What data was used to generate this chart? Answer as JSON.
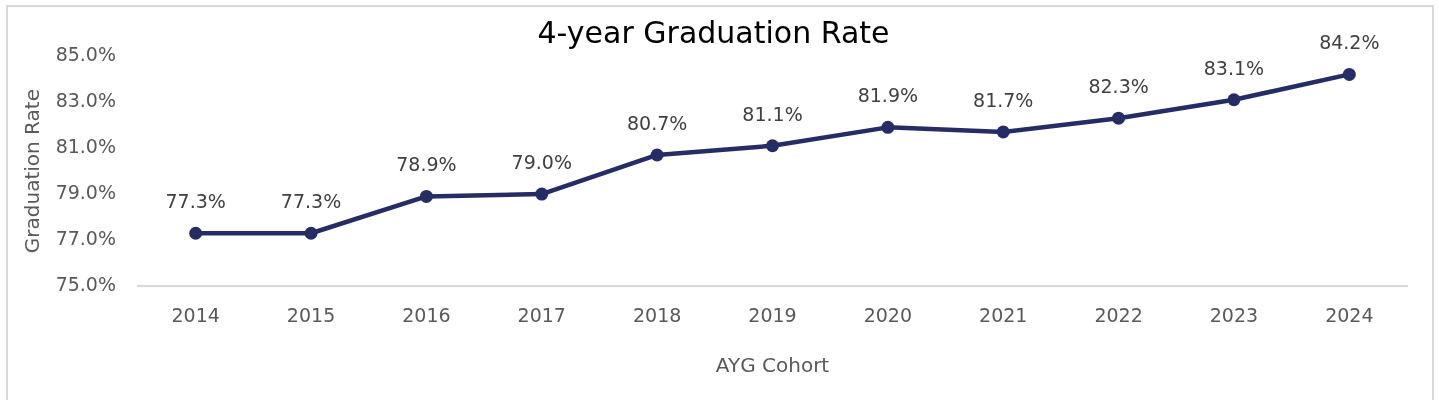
{
  "chart_data": {
    "type": "line",
    "title": "4-year Graduation Rate",
    "xlabel": "AYG Cohort",
    "ylabel": "Graduation Rate",
    "categories": [
      "2014",
      "2015",
      "2016",
      "2017",
      "2018",
      "2019",
      "2020",
      "2021",
      "2022",
      "2023",
      "2024"
    ],
    "values": [
      77.3,
      77.3,
      78.9,
      79.0,
      80.7,
      81.1,
      81.9,
      81.7,
      82.3,
      83.1,
      84.2
    ],
    "value_labels": [
      "77.3%",
      "77.3%",
      "78.9%",
      "79.0%",
      "80.7%",
      "81.1%",
      "81.9%",
      "81.7%",
      "82.3%",
      "83.1%",
      "84.2%"
    ],
    "color": "#262c64",
    "ylim": [
      75,
      85
    ],
    "yticks": [
      {
        "value": 75,
        "label": "75.0%"
      },
      {
        "value": 77,
        "label": "77.0%"
      },
      {
        "value": 79,
        "label": "79.0%"
      },
      {
        "value": 81,
        "label": "81.0%"
      },
      {
        "value": 83,
        "label": "83.0%"
      },
      {
        "value": 85,
        "label": "85.0%"
      }
    ],
    "grid": false,
    "legend": false,
    "marker": "circle",
    "line_style": "solid"
  }
}
